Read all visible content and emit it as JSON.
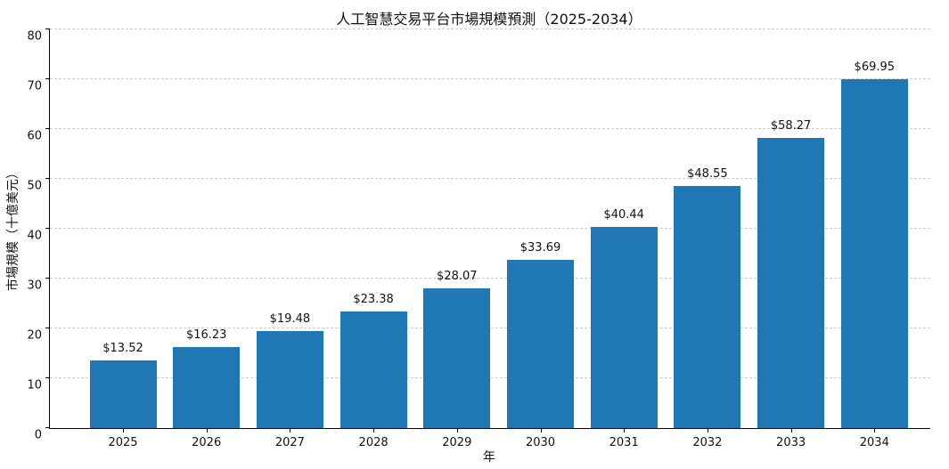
{
  "chart_data": {
    "type": "bar",
    "title": "人工智慧交易平台市場規模預測（2025-2034）",
    "xlabel": "年",
    "ylabel": "市場規模（十億美元）",
    "categories": [
      "2025",
      "2026",
      "2027",
      "2028",
      "2029",
      "2030",
      "2031",
      "2032",
      "2033",
      "2034"
    ],
    "values": [
      13.52,
      16.23,
      19.48,
      23.38,
      28.07,
      33.69,
      40.44,
      48.55,
      58.27,
      69.95
    ],
    "bar_labels": [
      "$13.52",
      "$16.23",
      "$19.48",
      "$23.38",
      "$28.07",
      "$33.69",
      "$40.44",
      "$48.55",
      "$58.27",
      "$69.95"
    ],
    "ylim": [
      0,
      80
    ],
    "yticks": [
      0,
      10,
      20,
      30,
      40,
      50,
      60,
      70,
      80
    ],
    "bar_color": "#1f77b4",
    "grid": true,
    "grid_style": "dashed",
    "legend": "none"
  }
}
